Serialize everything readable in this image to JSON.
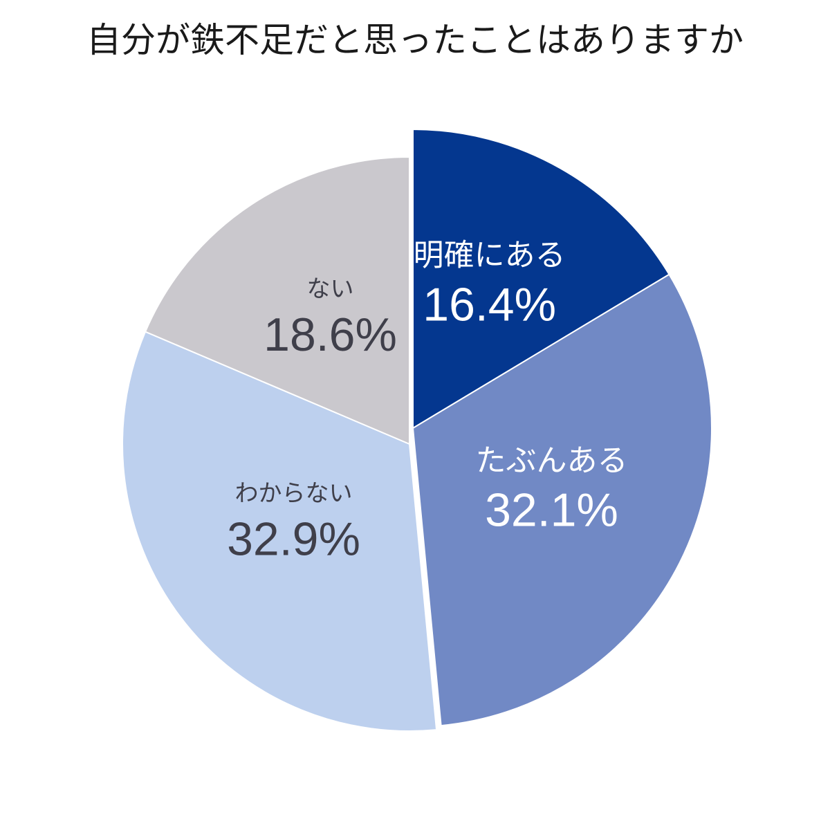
{
  "chart_data": {
    "type": "pie",
    "title": "自分が鉄不足だと思ったことはありますか",
    "slices": [
      {
        "label": "明確にある",
        "value": 16.4,
        "value_text": "16.4%",
        "color": "#04378f",
        "text_color": "#ffffff",
        "exploded": true
      },
      {
        "label": "たぶんある",
        "value": 32.1,
        "value_text": "32.1%",
        "color": "#7189c5",
        "text_color": "#ffffff",
        "exploded": true
      },
      {
        "label": "わからない",
        "value": 32.9,
        "value_text": "32.9%",
        "color": "#bdd0ee",
        "text_color": "#3f3f4a",
        "exploded": false
      },
      {
        "label": "ない",
        "value": 18.6,
        "value_text": "18.6%",
        "color": "#cac8cd",
        "text_color": "#3f3f4a",
        "exploded": false
      }
    ],
    "start": "12 o'clock",
    "direction": "clockwise",
    "legend": "none"
  }
}
